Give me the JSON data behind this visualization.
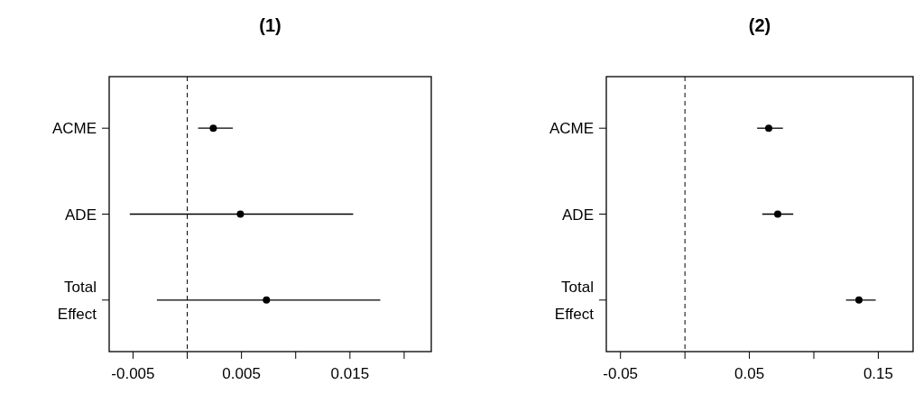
{
  "chart_data": [
    {
      "type": "scatter",
      "title": "(1)",
      "orientation": "horizontal",
      "categories": [
        "ACME",
        "ADE",
        "Total Effect"
      ],
      "values": [
        0.0024,
        0.0049,
        0.0073
      ],
      "errors": [
        [
          0.001,
          0.0042
        ],
        [
          -0.0053,
          0.0153
        ],
        [
          -0.0028,
          0.0178
        ]
      ],
      "color": "#000000",
      "marker": "circle",
      "xlim": [
        -0.0072,
        0.0225
      ],
      "xticks": [
        -0.005,
        {
          "value": 0,
          "label": null
        },
        0.005,
        {
          "value": 0.01,
          "label": null
        },
        0.015,
        {
          "value": 0.02,
          "label": null
        }
      ],
      "ref_lines": [
        {
          "axis": "x",
          "value": 0,
          "line_style": "dashed"
        }
      ],
      "grid": false
    },
    {
      "type": "scatter",
      "title": "(2)",
      "orientation": "horizontal",
      "categories": [
        "ACME",
        "ADE",
        "Total Effect"
      ],
      "values": [
        0.065,
        0.072,
        0.135
      ],
      "errors": [
        [
          0.056,
          0.076
        ],
        [
          0.06,
          0.084
        ],
        [
          0.125,
          0.148
        ]
      ],
      "color": "#000000",
      "marker": "circle",
      "xlim": [
        -0.061,
        0.177
      ],
      "xticks": [
        -0.05,
        {
          "value": 0,
          "label": null
        },
        0.05,
        {
          "value": 0.1,
          "label": null
        },
        0.15
      ],
      "ref_lines": [
        {
          "axis": "x",
          "value": 0,
          "line_style": "dashed"
        }
      ],
      "grid": false
    }
  ]
}
